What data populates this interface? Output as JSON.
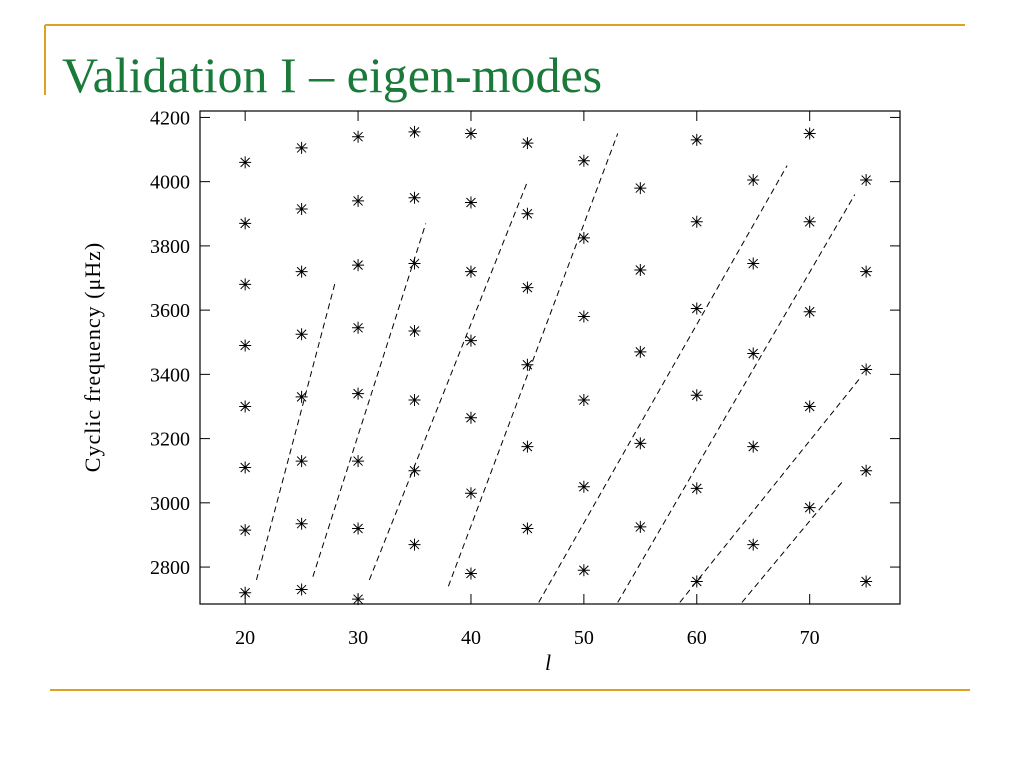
{
  "slide_title": "Validation I – eigen-modes",
  "chart_data": {
    "type": "scatter",
    "x_label": "l",
    "y_label": "Cyclic frequency (μHz)",
    "xlim": [
      16,
      78
    ],
    "ylim": [
      2685,
      4220
    ],
    "xticks": [
      20,
      30,
      40,
      50,
      60,
      70
    ],
    "yticks": [
      2800,
      3000,
      3200,
      3400,
      3600,
      3800,
      4000,
      4200
    ],
    "color": "#000000",
    "x": [
      20,
      20,
      20,
      20,
      20,
      20,
      20,
      20,
      25,
      25,
      25,
      25,
      25,
      25,
      25,
      25,
      30,
      30,
      30,
      30,
      30,
      30,
      30,
      30,
      35,
      35,
      35,
      35,
      35,
      35,
      35,
      40,
      40,
      40,
      40,
      40,
      40,
      40,
      45,
      45,
      45,
      45,
      45,
      45,
      50,
      50,
      50,
      50,
      50,
      50,
      55,
      55,
      55,
      55,
      55,
      60,
      60,
      60,
      60,
      60,
      60,
      65,
      65,
      65,
      65,
      65,
      70,
      70,
      70,
      70,
      70,
      75,
      75,
      75,
      75,
      75
    ],
    "values": [
      4060,
      3870,
      3680,
      3490,
      3300,
      3110,
      2915,
      2720,
      4105,
      3915,
      3720,
      3525,
      3330,
      3130,
      2935,
      2730,
      4140,
      3940,
      3740,
      3545,
      3340,
      3130,
      2920,
      2700,
      4155,
      3950,
      3745,
      3535,
      3320,
      3100,
      2870,
      4150,
      3935,
      3720,
      3505,
      3265,
      3030,
      2780,
      4120,
      3900,
      3670,
      3430,
      3175,
      2920,
      4065,
      3825,
      3580,
      3320,
      3050,
      2790,
      3980,
      3725,
      3470,
      3185,
      2925,
      4130,
      3875,
      3605,
      3335,
      3045,
      2755,
      4005,
      3745,
      3465,
      3175,
      2870,
      4150,
      3875,
      3595,
      3300,
      2985,
      4005,
      3720,
      3415,
      3100,
      2755
    ],
    "contours": [
      {
        "x": [
          21,
          28
        ],
        "y": [
          2760,
          3690
        ]
      },
      {
        "x": [
          26,
          36
        ],
        "y": [
          2770,
          3870
        ]
      },
      {
        "x": [
          31,
          45
        ],
        "y": [
          2760,
          4000
        ]
      },
      {
        "x": [
          38,
          53
        ],
        "y": [
          2740,
          4150
        ]
      },
      {
        "x": [
          46,
          68
        ],
        "y": [
          2690,
          4050
        ]
      },
      {
        "x": [
          53,
          74
        ],
        "y": [
          2690,
          3960
        ]
      },
      {
        "x": [
          58.5,
          74.5
        ],
        "y": [
          2690,
          3390
        ]
      },
      {
        "x": [
          64,
          73
        ],
        "y": [
          2690,
          3070
        ]
      }
    ]
  }
}
